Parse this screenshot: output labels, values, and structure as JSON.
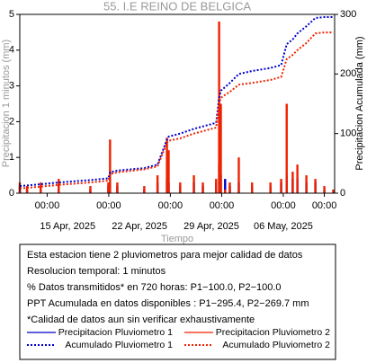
{
  "chart_data": {
    "type": "bar-line",
    "title": "55. I.E REINO DE BELGICA",
    "x_label": "Tiempo",
    "y_label": "Precipitacion 1 minutos (mm)",
    "y2_label": "Precipitacion Acumulada (mm)",
    "x": [
      "2025-04-10 08:00",
      "2025-04-11 01:00",
      "2025-04-12 09:00",
      "2025-04-14 03:00",
      "2025-04-17 05:00",
      "2025-04-18 23:00",
      "2025-04-19 03:00",
      "2025-04-19 20:00",
      "2025-04-22 11:00",
      "2025-04-23 18:00",
      "2025-04-24 16:00",
      "2025-04-24 20:00",
      "2025-04-25 23:00",
      "2025-04-27 07:00",
      "2025-04-28 04:00",
      "2025-04-29 11:00",
      "2025-04-29 18:00",
      "2025-04-29 22:00",
      "2025-04-30 08:00",
      "2025-04-30 19:00",
      "2025-05-01 16:00",
      "2025-05-02 23:00",
      "2025-05-04 18:00",
      "2025-05-05 19:00",
      "2025-05-06 08:00",
      "2025-05-06 22:00",
      "2025-05-07 09:00",
      "2025-05-08 06:00",
      "2025-05-09 03:00",
      "2025-05-10 00:00",
      "2025-05-10 21:00"
    ],
    "series": [
      {
        "name": "Precipitacion Pluviometro 1",
        "color": "#0000cc",
        "style": "bar",
        "axis": "y",
        "values": [
          0.2,
          0.1,
          0.2,
          0.3,
          0.1,
          0.2,
          0.3,
          0.2,
          0.1,
          0.3,
          0.4,
          0.3,
          0.2,
          0.3,
          0.2,
          0.3,
          0.8,
          0.5,
          0.4,
          0.2,
          0.3,
          0.2,
          0.2,
          0.3,
          0.5,
          0.4,
          0.4,
          0.3,
          0.3,
          0.1,
          0.1
        ]
      },
      {
        "name": "Precipitacion Pluviometro 2",
        "color": "#ee2200",
        "style": "bar",
        "axis": "y",
        "values": [
          0.3,
          0.2,
          0.3,
          0.4,
          0.2,
          0.3,
          1.5,
          0.3,
          0.2,
          0.5,
          1.55,
          1.2,
          0.3,
          0.5,
          0.3,
          0.4,
          4.8,
          2.5,
          0.1,
          0.3,
          1.0,
          0.3,
          0.3,
          0.4,
          2.5,
          0.6,
          0.8,
          0.5,
          0.4,
          0.2,
          0.1
        ]
      },
      {
        "name": "Acumulado Pluviometro 1",
        "color": "#0000cc",
        "style": "dotted",
        "axis": "y2",
        "values": [
          12,
          13,
          15,
          18,
          22,
          25,
          35,
          38,
          42,
          48,
          90,
          95,
          100,
          108,
          112,
          118,
          160,
          172,
          178,
          185,
          200,
          205,
          210,
          215,
          250,
          258,
          268,
          280,
          294,
          295.4,
          295.4
        ]
      },
      {
        "name": "Acumulado Pluviometro 2",
        "color": "#ee2200",
        "style": "dotted",
        "axis": "y2",
        "values": [
          8,
          9,
          11,
          14,
          18,
          21,
          32,
          35,
          40,
          45,
          85,
          88,
          92,
          100,
          104,
          110,
          150,
          160,
          165,
          170,
          182,
          185,
          190,
          195,
          225,
          232,
          240,
          252,
          268,
          269.7,
          269.7
        ]
      }
    ],
    "xlim": [
      "2025-04-10 08:00",
      "2025-05-11 00:00"
    ],
    "xticks": [
      {
        "value": "2025-04-13 00:00",
        "label": "00:00"
      },
      {
        "value": "2025-04-19 00:00",
        "label": "00:00"
      },
      {
        "value": "2025-04-25 00:00",
        "label": "00:00"
      },
      {
        "value": "2025-04-30 00:00",
        "label": "00:00"
      },
      {
        "value": "2025-05-06 00:00",
        "label": "00:00"
      },
      {
        "value": "2025-05-10 00:00",
        "label": "00:00"
      }
    ],
    "date_ticks": [
      {
        "value": "2025-04-15 00:00",
        "label": "15 Apr, 2025"
      },
      {
        "value": "2025-04-22 00:00",
        "label": "22 Apr, 2025"
      },
      {
        "value": "2025-04-29 00:00",
        "label": "29 Apr, 2025"
      },
      {
        "value": "2025-05-06 00:00",
        "label": "06 May, 2025"
      }
    ],
    "ylim": [
      0,
      5
    ],
    "yticks": [
      0,
      1,
      2,
      3,
      4,
      5
    ],
    "y2lim": [
      0,
      300
    ],
    "y2ticks": [
      0,
      100,
      200,
      300
    ],
    "notes": [
      "Esta estacion tiene 2 pluviometros para mejor calidad de datos",
      "Resolucion temporal: 1 minutos",
      "% Datos transmitidos* en 720 horas: P1−100.0, P2−100.0",
      "PPT Acumulada en datos disponibles : P1−295.4, P2−269.7 mm",
      "*Calidad de datos aun sin verificar exhaustivamente"
    ]
  }
}
